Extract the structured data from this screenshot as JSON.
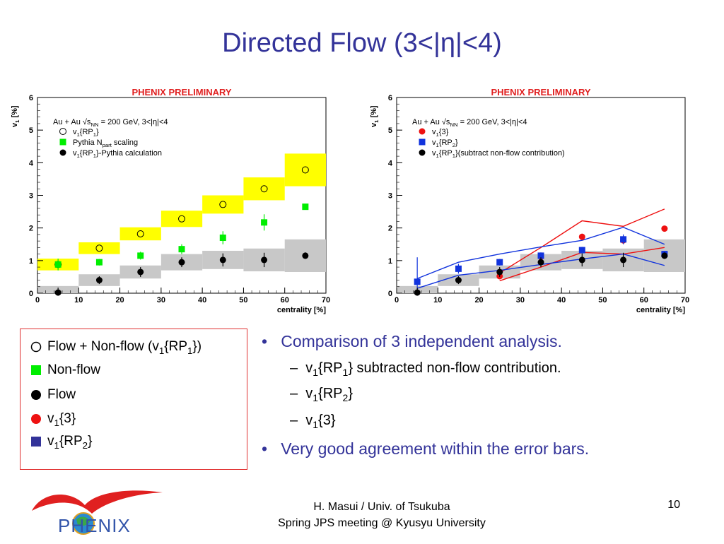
{
  "slide": {
    "title": "Directed Flow (3<|η|<4)",
    "footer_line1": "H. Masui / Univ. of Tsukuba",
    "footer_line2": "Spring JPS meeting @ Kyusyu University",
    "page_number": "10",
    "logo_text": "PHENIX"
  },
  "colors": {
    "title": "#333399",
    "preliminary": "#e02020",
    "box_border": "#e03030",
    "yellow": "#ffff00",
    "grey": "#c8c8c8",
    "green": "#00ee00",
    "red": "#ee1111",
    "blue": "#1133dd"
  },
  "legend_box": {
    "items": [
      {
        "symbol": "open-circle",
        "label": "Flow + Non-flow (v",
        "sub": "1",
        "label2": "{RP",
        "sub2": "1",
        "label3": "})"
      },
      {
        "symbol": "green-square",
        "label": "Non-flow"
      },
      {
        "symbol": "black-circle",
        "label": "Flow"
      },
      {
        "symbol": "red-circle",
        "label": "v",
        "sub": "1",
        "label2": "{3}"
      },
      {
        "symbol": "blue-square",
        "label": "v",
        "sub": "1",
        "label2": "{RP",
        "sub2": "2",
        "label3": "}"
      }
    ]
  },
  "bullets": {
    "b1": "Comparison of 3 independent analysis.",
    "b1_subs": [
      {
        "pre": "v",
        "sub": "1",
        "mid": "{RP",
        "sub2": "1",
        "post": "} subtracted non-flow contribution."
      },
      {
        "pre": "v",
        "sub": "1",
        "mid": "{RP",
        "sub2": "2",
        "post": "}"
      },
      {
        "pre": "v",
        "sub": "1",
        "mid": "{3}",
        "sub2": "",
        "post": ""
      }
    ],
    "b2": "Very good agreement within the error bars."
  },
  "chart_data": [
    {
      "type": "scatter",
      "title": "PHENIX PRELIMINARY",
      "annotation": "Au + Au √s",
      "annotation_sub": "NN",
      "annotation_post": " = 200 GeV, 3<|η|<4",
      "xlabel": "centrality [%]",
      "ylabel": "v",
      "ylabel_sub": "1",
      "ylabel_post": " [%]",
      "xlim": [
        0,
        70
      ],
      "ylim": [
        0,
        6
      ],
      "xticks": [
        0,
        10,
        20,
        30,
        40,
        50,
        60,
        70
      ],
      "yticks": [
        0,
        1,
        2,
        3,
        4,
        5,
        6
      ],
      "legend": [
        "v1{RP1}",
        "Pythia Npart scaling",
        "v1{RP1}-Pythia calculation"
      ],
      "legend_subs": [
        [
          "1",
          "1"
        ],
        [
          "part"
        ],
        [
          "1",
          "1"
        ]
      ],
      "legend_display": [
        {
          "pre": "v",
          "s1": "1",
          "mid": "{RP",
          "s2": "1",
          "post": "}"
        },
        {
          "pre": "Pythia N",
          "s1": "part",
          "mid": " scaling",
          "s2": "",
          "post": ""
        },
        {
          "pre": "v",
          "s1": "1",
          "mid": "{RP",
          "s2": "1",
          "post": "}-Pythia calculation"
        }
      ],
      "x": [
        5,
        15,
        25,
        35,
        45,
        55,
        65
      ],
      "series": [
        {
          "name": "v1{RP1}",
          "marker": "open-circle",
          "values": [
            0.88,
            1.38,
            1.82,
            2.28,
            2.72,
            3.2,
            3.78
          ],
          "syst": [
            0.18,
            0.18,
            0.2,
            0.25,
            0.28,
            0.35,
            0.5
          ],
          "syst_color": "yellow"
        },
        {
          "name": "Pythia Npart scaling",
          "marker": "green-square",
          "values": [
            0.88,
            0.95,
            1.15,
            1.35,
            1.7,
            2.17,
            2.65
          ],
          "err": [
            0.18,
            0.1,
            0.12,
            0.15,
            0.2,
            0.25,
            0.08
          ]
        },
        {
          "name": "v1{RP1}-Pythia calculation",
          "marker": "black-circle",
          "values": [
            0.02,
            0.4,
            0.65,
            0.95,
            1.02,
            1.02,
            1.15
          ],
          "err": [
            0.15,
            0.12,
            0.15,
            0.15,
            0.2,
            0.22,
            0.1
          ],
          "syst": [
            0.2,
            0.18,
            0.2,
            0.25,
            0.28,
            0.35,
            0.5
          ],
          "syst_color": "grey"
        }
      ]
    },
    {
      "type": "scatter",
      "title": "PHENIX PRELIMINARY",
      "annotation": "Au + Au √s",
      "annotation_sub": "NN",
      "annotation_post": " = 200 GeV, 3<|η|<4",
      "xlabel": "centrality [%]",
      "ylabel": "v",
      "ylabel_sub": "1",
      "ylabel_post": " [%]",
      "xlim": [
        0,
        70
      ],
      "ylim": [
        0,
        6
      ],
      "xticks": [
        0,
        10,
        20,
        30,
        40,
        50,
        60,
        70
      ],
      "yticks": [
        0,
        1,
        2,
        3,
        4,
        5,
        6
      ],
      "legend_display": [
        {
          "pre": "v",
          "s1": "1",
          "mid": "{3}",
          "s2": "",
          "post": ""
        },
        {
          "pre": "v",
          "s1": "1",
          "mid": "{RP",
          "s2": "2",
          "post": "}"
        },
        {
          "pre": "v",
          "s1": "1",
          "mid": "{RP",
          "s2": "1",
          "post": "}(subtract non-flow contribution)"
        }
      ],
      "x": [
        5,
        15,
        25,
        35,
        45,
        55,
        65
      ],
      "series": [
        {
          "name": "v1{3}",
          "marker": "red-circle",
          "x": [
            25,
            35,
            45,
            55,
            65
          ],
          "values": [
            0.52,
            1.12,
            1.73,
            1.62,
            1.98
          ],
          "band_upper": [
            0.62,
            1.4,
            2.22,
            2.05,
            2.58
          ],
          "band_lower": [
            0.38,
            0.8,
            1.25,
            1.2,
            1.4
          ]
        },
        {
          "name": "v1{RP2}",
          "marker": "blue-square",
          "x": [
            5,
            15,
            25,
            35,
            45,
            55,
            65
          ],
          "values": [
            0.35,
            0.75,
            0.95,
            1.15,
            1.32,
            1.65,
            1.2
          ],
          "band_upper": [
            0.45,
            0.95,
            1.2,
            1.42,
            1.62,
            2.02,
            1.5
          ],
          "band_lower": [
            0.15,
            0.55,
            0.7,
            0.88,
            1.05,
            1.2,
            0.85
          ],
          "err": [
            0.75,
            0.15,
            0.1,
            0.1,
            0.1,
            0.15,
            0.1
          ]
        },
        {
          "name": "v1{RP1}(subtract non-flow contribution)",
          "marker": "black-circle",
          "x": [
            5,
            15,
            25,
            35,
            45,
            55,
            65
          ],
          "values": [
            0.02,
            0.4,
            0.65,
            0.95,
            1.02,
            1.02,
            1.15
          ],
          "err": [
            0.15,
            0.12,
            0.15,
            0.15,
            0.2,
            0.22,
            0.1
          ],
          "syst": [
            0.2,
            0.18,
            0.2,
            0.25,
            0.28,
            0.35,
            0.5
          ],
          "syst_color": "grey"
        }
      ]
    }
  ]
}
